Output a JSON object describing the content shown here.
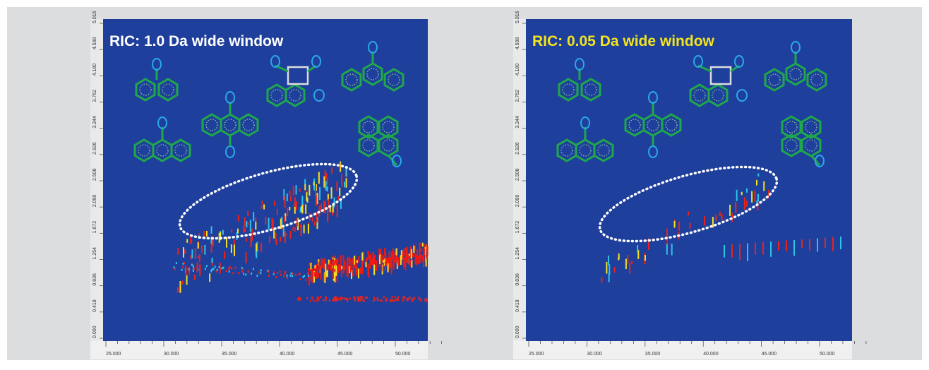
{
  "panels": [
    {
      "title": "RIC: 1.0 Da wide window",
      "x_ticks": [
        "25.000",
        "30.000",
        "35.000",
        "40.000",
        "45.000",
        "50.000"
      ],
      "y_ticks": [
        "0.000",
        "0.418",
        "0.836",
        "1.254",
        "1.672",
        "2.090",
        "2.508",
        "2.926",
        "3.344",
        "3.762",
        "4.180",
        "4.598",
        "5.016"
      ]
    },
    {
      "title": "RIC: 0.05 Da wide window",
      "x_ticks": [
        "25.000",
        "30.000",
        "35.000",
        "40.000",
        "45.000",
        "50.000"
      ],
      "y_ticks": [
        "0.000",
        "0.418",
        "0.836",
        "1.254",
        "1.672",
        "2.090",
        "2.508",
        "2.926",
        "3.344",
        "3.762",
        "4.180",
        "4.598",
        "5.016"
      ]
    }
  ]
}
